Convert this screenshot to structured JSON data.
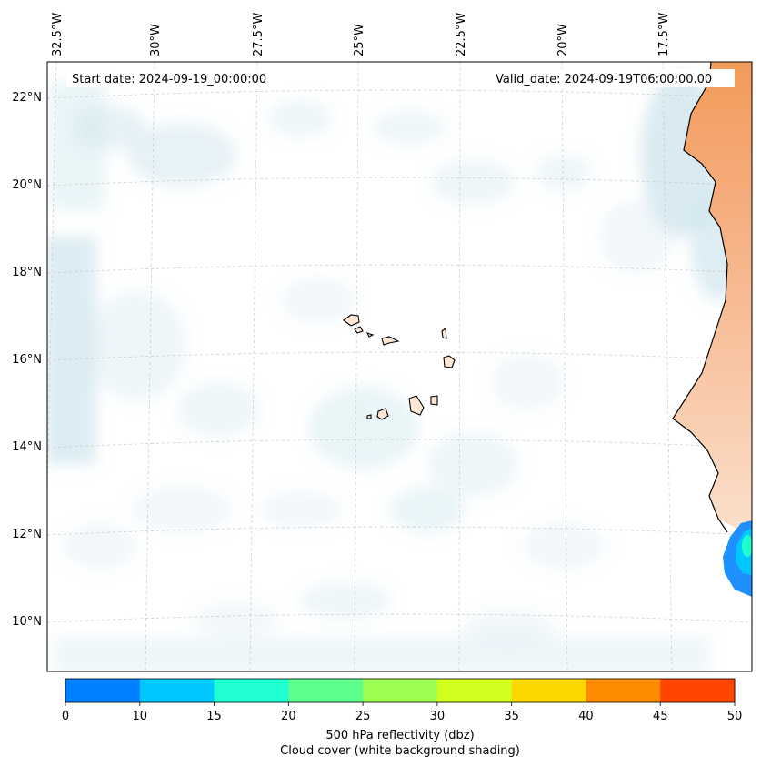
{
  "header": {
    "start_date": "Start date: 2024-09-19_00:00:00",
    "valid_date": "Valid_date: 2024-09-19T06:00:00.00"
  },
  "map": {
    "longitude_labels": [
      "32.5°W",
      "30°W",
      "27.5°W",
      "25°W",
      "22.5°W",
      "20°W",
      "17.5°W"
    ],
    "latitude_labels": [
      "22°N",
      "20°N",
      "18°N",
      "16°N",
      "14°N",
      "12°N",
      "10°N"
    ],
    "gridlines": "dashed",
    "land_color": "#f4a262",
    "coastline_color": "#000000",
    "cloud_shading_color": "#d2e8ef"
  },
  "colorbar": {
    "ticks": [
      "0",
      "10",
      "15",
      "20",
      "25",
      "30",
      "35",
      "40",
      "45",
      "50"
    ],
    "colors": [
      "#0080ff",
      "#00c8ff",
      "#1effd2",
      "#5aff8c",
      "#9cff50",
      "#d2ff1e",
      "#ffd700",
      "#ff8c00",
      "#ff4500"
    ],
    "label": "500 hPa reflectivity (dbz)",
    "sublabel": "Cloud cover (white background shading)"
  }
}
